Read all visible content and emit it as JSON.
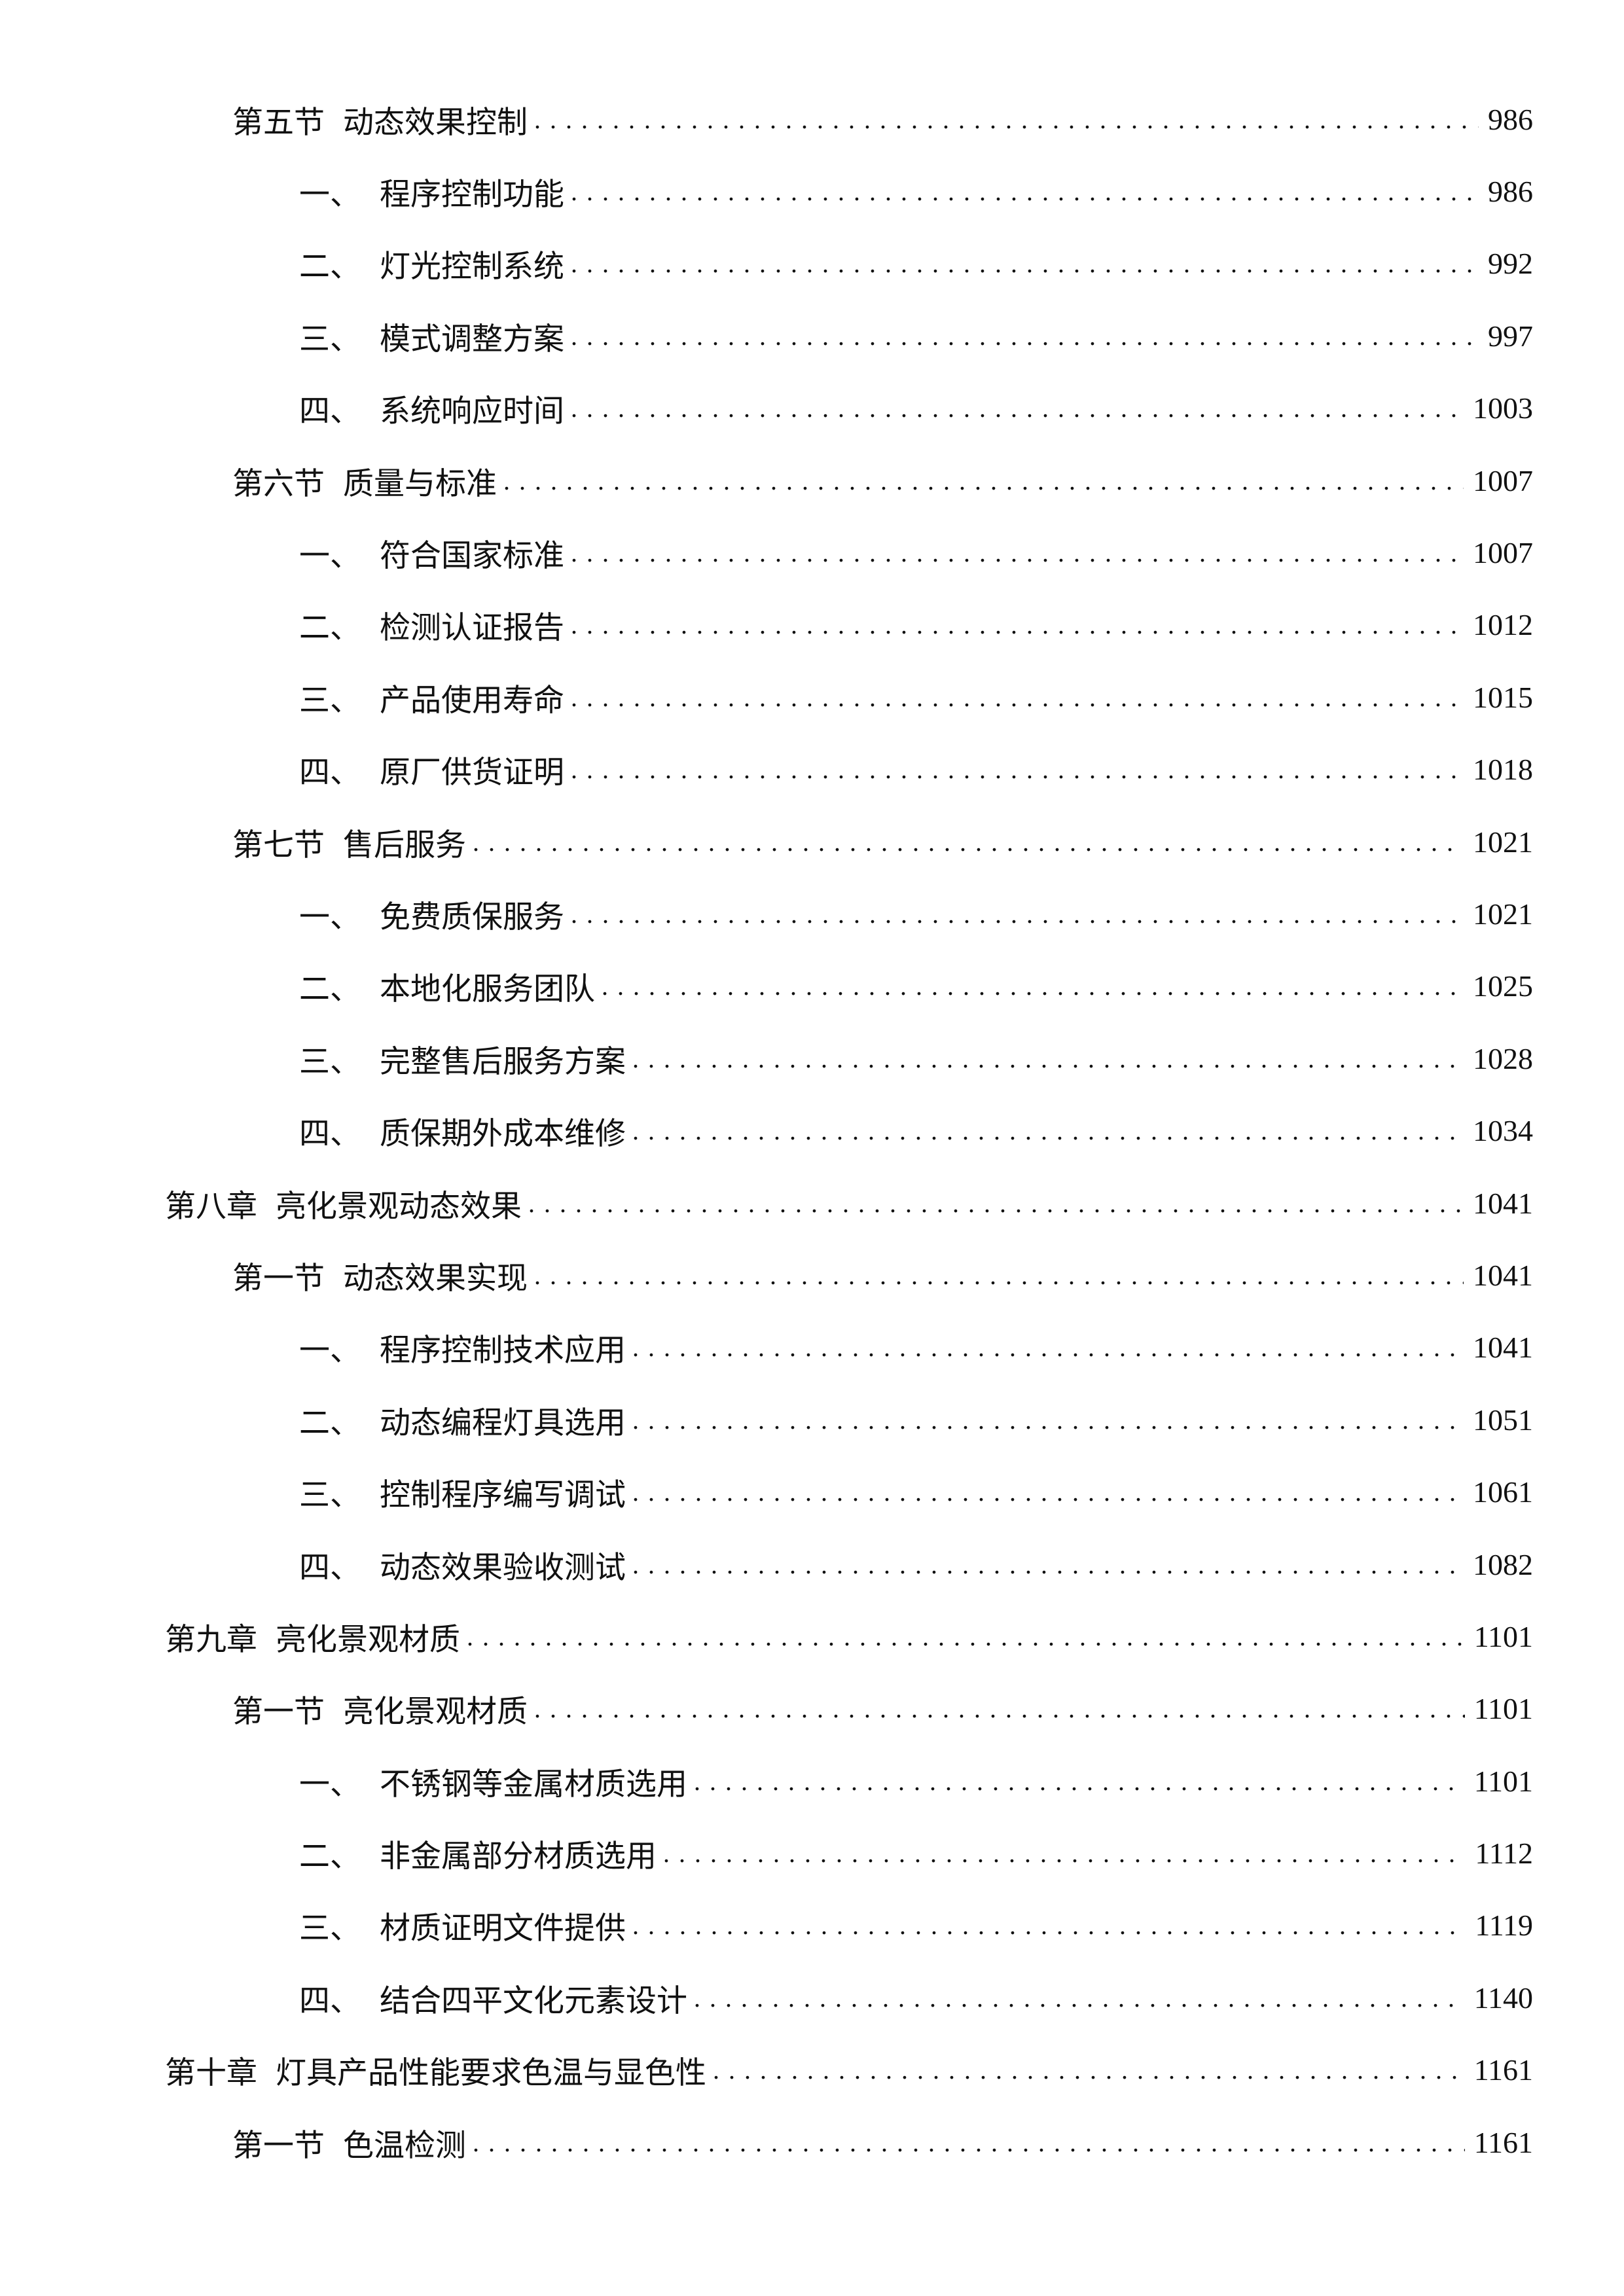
{
  "toc": [
    {
      "level": "sec",
      "mark": "第五节",
      "title": "动态效果控制",
      "page": "986"
    },
    {
      "level": "item",
      "mark": "一、",
      "title": "程序控制功能",
      "page": "986"
    },
    {
      "level": "item",
      "mark": "二、",
      "title": "灯光控制系统",
      "page": "992"
    },
    {
      "level": "item",
      "mark": "三、",
      "title": "模式调整方案",
      "page": "997"
    },
    {
      "level": "item",
      "mark": "四、",
      "title": "系统响应时间",
      "page": "1003"
    },
    {
      "level": "sec",
      "mark": "第六节",
      "title": "质量与标准",
      "page": "1007"
    },
    {
      "level": "item",
      "mark": "一、",
      "title": "符合国家标准",
      "page": "1007"
    },
    {
      "level": "item",
      "mark": "二、",
      "title": "检测认证报告",
      "page": "1012"
    },
    {
      "level": "item",
      "mark": "三、",
      "title": "产品使用寿命",
      "page": "1015"
    },
    {
      "level": "item",
      "mark": "四、",
      "title": "原厂供货证明",
      "page": "1018"
    },
    {
      "level": "sec",
      "mark": "第七节",
      "title": "售后服务",
      "page": "1021"
    },
    {
      "level": "item",
      "mark": "一、",
      "title": "免费质保服务",
      "page": "1021"
    },
    {
      "level": "item",
      "mark": "二、",
      "title": "本地化服务团队",
      "page": "1025"
    },
    {
      "level": "item",
      "mark": "三、",
      "title": "完整售后服务方案",
      "page": "1028"
    },
    {
      "level": "item",
      "mark": "四、",
      "title": "质保期外成本维修",
      "page": "1034"
    },
    {
      "level": "ch",
      "mark": "第八章",
      "title": "亮化景观动态效果",
      "page": "1041"
    },
    {
      "level": "sec",
      "mark": "第一节",
      "title": "动态效果实现",
      "page": "1041"
    },
    {
      "level": "item",
      "mark": "一、",
      "title": "程序控制技术应用",
      "page": "1041"
    },
    {
      "level": "item",
      "mark": "二、",
      "title": "动态编程灯具选用",
      "page": "1051"
    },
    {
      "level": "item",
      "mark": "三、",
      "title": "控制程序编写调试",
      "page": "1061"
    },
    {
      "level": "item",
      "mark": "四、",
      "title": "动态效果验收测试",
      "page": "1082"
    },
    {
      "level": "ch",
      "mark": "第九章",
      "title": "亮化景观材质",
      "page": "1101"
    },
    {
      "level": "sec",
      "mark": "第一节",
      "title": "亮化景观材质",
      "page": "1101"
    },
    {
      "level": "item",
      "mark": "一、",
      "title": "不锈钢等金属材质选用",
      "page": "1101"
    },
    {
      "level": "item",
      "mark": "二、",
      "title": "非金属部分材质选用",
      "page": "1112"
    },
    {
      "level": "item",
      "mark": "三、",
      "title": "材质证明文件提供",
      "page": "1119"
    },
    {
      "level": "item",
      "mark": "四、",
      "title": "结合四平文化元素设计",
      "page": "1140"
    },
    {
      "level": "ch",
      "mark": "第十章",
      "title": "灯具产品性能要求色温与显色性",
      "page": "1161"
    },
    {
      "level": "sec",
      "mark": "第一节",
      "title": "色温检测",
      "page": "1161"
    }
  ]
}
